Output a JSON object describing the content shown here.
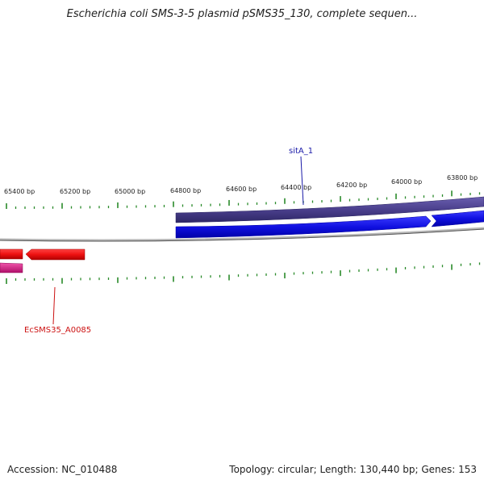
{
  "title": "Escherichia coli SMS-3-5 plasmid pSMS35_130, complete sequen...",
  "ruler": {
    "ticks": [
      "65400 bp",
      "65200 bp",
      "65000 bp",
      "64800 bp",
      "64600 bp",
      "64400 bp",
      "64200 bp",
      "64000 bp",
      "63800 bp"
    ]
  },
  "genes": {
    "forward_label": "sitA_1",
    "reverse_label": "EcSMS35_A0085"
  },
  "colors": {
    "cds_forward": "#1010e0",
    "cds_reverse": "#ee1111",
    "feature_band": "#4a3f8c",
    "pink_feature": "#dd2288",
    "tick": "#2a8a2a",
    "backbone": "#888888"
  },
  "footer": {
    "accession": "Accession: NC_010488",
    "summary": "Topology: circular; Length: 130,440 bp; Genes: 153"
  }
}
